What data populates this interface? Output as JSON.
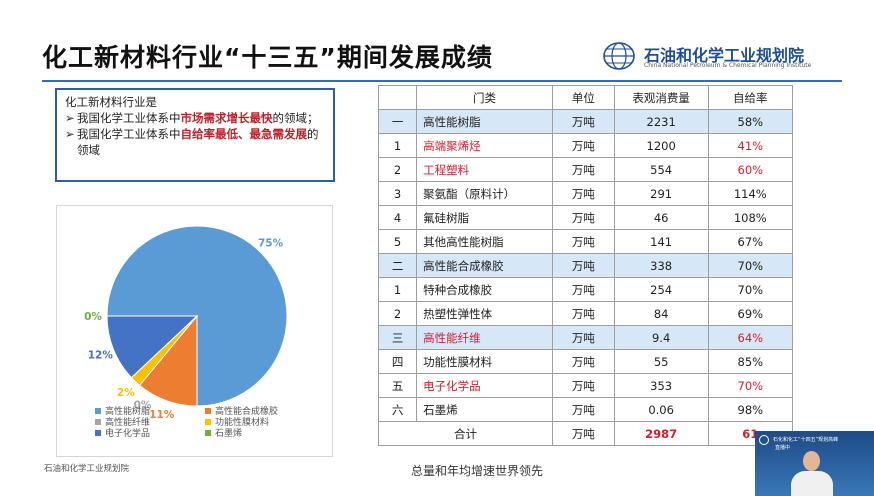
{
  "page": {
    "title": "化工新材料行业“十三五”期间发展成绩",
    "org_name": "石油和化学工业规划院",
    "org_sub": "China National Petroleum & Chemical Planning Institute",
    "source": "石油和化学工业规划院",
    "caption": "总量和年均增速世界领先"
  },
  "note": {
    "heading": "化工新材料行业是",
    "bullets": [
      {
        "marker": "➢",
        "pre": "我国化学工业体系中",
        "em": "市场需求增长最快",
        "post": "的领域；"
      },
      {
        "marker": "➢",
        "pre": "我国化学工业体系中",
        "em": "自给率最低、最急需发展",
        "post": "的领域"
      }
    ]
  },
  "table": {
    "headers": [
      "",
      "门类",
      "单位",
      "表观消费量",
      "自给率"
    ],
    "rows": [
      {
        "idx": "一",
        "name": "高性能树脂",
        "unit": "万吨",
        "consumption": "2231",
        "rate": "58%",
        "major": true,
        "highlight": false
      },
      {
        "idx": "1",
        "name": "高端聚烯烃",
        "unit": "万吨",
        "consumption": "1200",
        "rate": "41%",
        "major": false,
        "highlight": true
      },
      {
        "idx": "2",
        "name": "工程塑料",
        "unit": "万吨",
        "consumption": "554",
        "rate": "60%",
        "major": false,
        "highlight": true
      },
      {
        "idx": "3",
        "name": "聚氨酯（原料计）",
        "unit": "万吨",
        "consumption": "291",
        "rate": "114%",
        "major": false,
        "highlight": false
      },
      {
        "idx": "4",
        "name": "氟硅树脂",
        "unit": "万吨",
        "consumption": "46",
        "rate": "108%",
        "major": false,
        "highlight": false
      },
      {
        "idx": "5",
        "name": "其他高性能树脂",
        "unit": "万吨",
        "consumption": "141",
        "rate": "67%",
        "major": false,
        "highlight": false
      },
      {
        "idx": "二",
        "name": "高性能合成橡胶",
        "unit": "万吨",
        "consumption": "338",
        "rate": "70%",
        "major": true,
        "highlight": false
      },
      {
        "idx": "1",
        "name": "特种合成橡胶",
        "unit": "万吨",
        "consumption": "254",
        "rate": "70%",
        "major": false,
        "highlight": false
      },
      {
        "idx": "2",
        "name": "热塑性弹性体",
        "unit": "万吨",
        "consumption": "84",
        "rate": "69%",
        "major": false,
        "highlight": false
      },
      {
        "idx": "三",
        "name": "高性能纤维",
        "unit": "万吨",
        "consumption": "9.4",
        "rate": "64%",
        "major": true,
        "highlight": true
      },
      {
        "idx": "四",
        "name": "功能性膜材料",
        "unit": "万吨",
        "consumption": "55",
        "rate": "85%",
        "major": false,
        "highlight": false
      },
      {
        "idx": "五",
        "name": "电子化学品",
        "unit": "万吨",
        "consumption": "353",
        "rate": "70%",
        "major": false,
        "highlight": true
      },
      {
        "idx": "六",
        "name": "石墨烯",
        "unit": "万吨",
        "consumption": "0.06",
        "rate": "98%",
        "major": false,
        "highlight": false
      }
    ],
    "total": {
      "label": "合计",
      "unit": "万吨",
      "consumption": "2987",
      "rate": "61"
    }
  },
  "chart_data": {
    "type": "pie",
    "categories": [
      "高性能树脂",
      "高性能合成橡胶",
      "高性能纤维",
      "功能性膜材料",
      "电子化学品",
      "石墨烯"
    ],
    "values": [
      75,
      11,
      0,
      2,
      12,
      0
    ],
    "labels": [
      "75%",
      "11%",
      "0%",
      "2%",
      "12%",
      "0%"
    ],
    "colors": [
      "#5b9bd5",
      "#ed7d31",
      "#a5a5a5",
      "#ffc000",
      "#4472c4",
      "#70ad47"
    ],
    "legend_position": "bottom"
  },
  "video": {
    "title": "石化和化工“十四五”规划高峰",
    "subtitle": "直播中"
  }
}
